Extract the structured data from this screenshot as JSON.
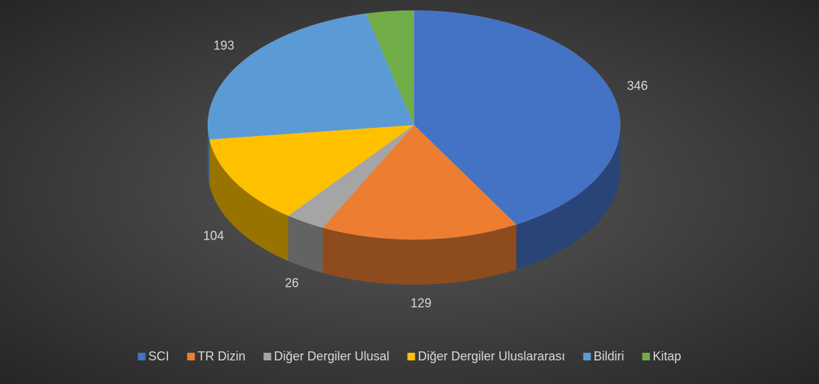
{
  "chart_data": {
    "type": "pie",
    "categories": [
      "SCI",
      "TR Dizin",
      "Diğer Dergiler Ulusal",
      "Diğer Dergiler Uluslararası",
      "Bildiri",
      "Kitap"
    ],
    "values": [
      346,
      129,
      26,
      104,
      193,
      31
    ],
    "colors": [
      "#4472c4",
      "#ed7d31",
      "#a5a5a5",
      "#ffc000",
      "#5b9bd5",
      "#70ad47"
    ],
    "legend": "bottom"
  }
}
